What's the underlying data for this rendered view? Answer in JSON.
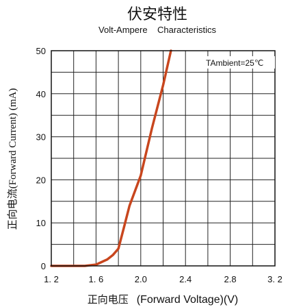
{
  "chart_data": {
    "type": "line",
    "title": "伏安特性",
    "subtitle": "Volt-Ampere    Characteristics",
    "xlabel_cn": "正向电压",
    "xlabel_en": "(Forward  Voltage)(V)",
    "ylabel": "正向电流(Forward Current) (mA)",
    "annotation": "TAmbient=25℃",
    "xlim": [
      1.2,
      3.2
    ],
    "ylim": [
      0,
      50
    ],
    "grid": true,
    "x_ticks": [
      {
        "value": 1.2,
        "label": "1. 2"
      },
      {
        "value": 1.6,
        "label": "1. 6"
      },
      {
        "value": 2.0,
        "label": "2.0"
      },
      {
        "value": 2.4,
        "label": "2.4"
      },
      {
        "value": 2.8,
        "label": "2.8"
      },
      {
        "value": 3.2,
        "label": "3. 2"
      }
    ],
    "y_ticks": [
      {
        "value": 0,
        "label": "0"
      },
      {
        "value": 10,
        "label": "10"
      },
      {
        "value": 20,
        "label": "20"
      },
      {
        "value": 30,
        "label": "30"
      },
      {
        "value": 40,
        "label": "40"
      },
      {
        "value": 50,
        "label": "50"
      }
    ],
    "series": [
      {
        "color": "#c8461e",
        "x": [
          1.2,
          1.5,
          1.6,
          1.7,
          1.75,
          1.8,
          1.85,
          1.9,
          2.0,
          2.1,
          2.2,
          2.27
        ],
        "y": [
          0,
          0,
          0.3,
          1.5,
          2.5,
          4,
          9,
          14,
          21,
          32,
          42,
          50
        ]
      }
    ]
  }
}
